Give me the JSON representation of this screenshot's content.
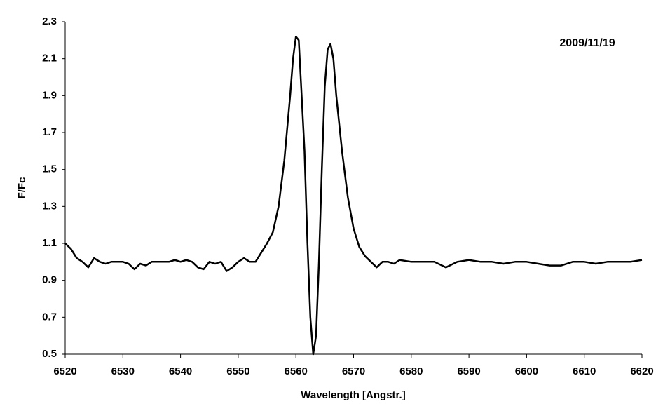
{
  "chart_data": {
    "type": "line",
    "xlabel": "Wavelength [Angstr.]",
    "ylabel": "F/Fc",
    "annotation": "2009/11/19",
    "xlim": [
      6520,
      6620
    ],
    "xticks": [
      6520,
      6530,
      6540,
      6550,
      6560,
      6570,
      6580,
      6590,
      6600,
      6610,
      6620
    ],
    "ylim": [
      0.5,
      2.3
    ],
    "yticks": [
      0.5,
      0.7,
      0.9,
      1.1,
      1.3,
      1.5,
      1.7,
      1.9,
      2.1,
      2.3
    ],
    "series": [
      {
        "color": "#000000",
        "x": [
          6520,
          6521,
          6522,
          6523,
          6524,
          6525,
          6526,
          6527,
          6528,
          6529,
          6530,
          6531,
          6532,
          6533,
          6534,
          6535,
          6536,
          6537,
          6538,
          6539,
          6540,
          6541,
          6542,
          6543,
          6544,
          6545,
          6546,
          6547,
          6548,
          6549,
          6550,
          6551,
          6552,
          6553,
          6554,
          6555,
          6556,
          6557,
          6558,
          6559,
          6559.5,
          6560,
          6560.5,
          6561,
          6561.5,
          6562,
          6562.5,
          6563,
          6563.5,
          6564,
          6564.5,
          6565,
          6565.5,
          6566,
          6566.5,
          6567,
          6568,
          6569,
          6570,
          6571,
          6572,
          6573,
          6574,
          6575,
          6576,
          6577,
          6578,
          6580,
          6582,
          6584,
          6586,
          6588,
          6590,
          6592,
          6594,
          6596,
          6598,
          6600,
          6602,
          6604,
          6606,
          6608,
          6610,
          6612,
          6614,
          6616,
          6618,
          6620
        ],
        "values": [
          1.1,
          1.07,
          1.02,
          1.0,
          0.97,
          1.02,
          1.0,
          0.99,
          1.0,
          1.0,
          1.0,
          0.99,
          0.96,
          0.99,
          0.98,
          1.0,
          1.0,
          1.0,
          1.0,
          1.01,
          1.0,
          1.01,
          1.0,
          0.97,
          0.96,
          1.0,
          0.99,
          1.0,
          0.95,
          0.97,
          1.0,
          1.02,
          1.0,
          1.0,
          1.05,
          1.1,
          1.16,
          1.3,
          1.55,
          1.9,
          2.1,
          2.22,
          2.2,
          1.9,
          1.6,
          1.1,
          0.7,
          0.5,
          0.6,
          1.0,
          1.5,
          1.95,
          2.15,
          2.18,
          2.1,
          1.9,
          1.6,
          1.35,
          1.18,
          1.08,
          1.03,
          1.0,
          0.97,
          1.0,
          1.0,
          0.99,
          1.01,
          1.0,
          1.0,
          1.0,
          0.97,
          1.0,
          1.01,
          1.0,
          1.0,
          0.99,
          1.0,
          1.0,
          0.99,
          0.98,
          0.98,
          1.0,
          1.0,
          0.99,
          1.0,
          1.0,
          1.0,
          1.01
        ]
      }
    ]
  }
}
